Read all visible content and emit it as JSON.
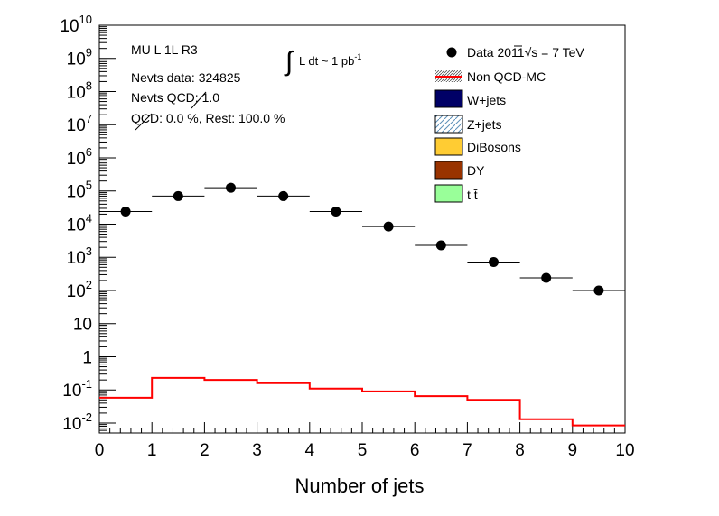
{
  "chart_data": {
    "type": "scatter",
    "xlabel": "Number of jets",
    "ylabel": "",
    "xlim": [
      0,
      10
    ],
    "ylim_log10": [
      -2.3,
      10
    ],
    "log_y": true,
    "x_ticks": [
      "0",
      "1",
      "2",
      "3",
      "4",
      "5",
      "6",
      "7",
      "8",
      "9",
      "10"
    ],
    "y_ticks": [
      {
        "v": 10,
        "base": "10",
        "exp": "10"
      },
      {
        "v": 9,
        "base": "10",
        "exp": "9"
      },
      {
        "v": 8,
        "base": "10",
        "exp": "8"
      },
      {
        "v": 7,
        "base": "10",
        "exp": "7"
      },
      {
        "v": 6,
        "base": "10",
        "exp": "6"
      },
      {
        "v": 5,
        "base": "10",
        "exp": "5"
      },
      {
        "v": 4,
        "base": "10",
        "exp": "4"
      },
      {
        "v": 3,
        "base": "10",
        "exp": "3"
      },
      {
        "v": 2,
        "base": "10",
        "exp": "2"
      },
      {
        "v": 1,
        "base": "10",
        "exp": ""
      },
      {
        "v": 0,
        "base": "1",
        "exp": ""
      },
      {
        "v": -1,
        "base": "10",
        "exp": "-1"
      },
      {
        "v": -2,
        "base": "10",
        "exp": "-2"
      }
    ],
    "series": [
      {
        "name": "Data 2011",
        "kind": "points",
        "color": "#000000",
        "x": [
          0.5,
          1.5,
          2.5,
          3.5,
          4.5,
          5.5,
          6.5,
          7.5,
          8.5,
          9.5
        ],
        "y": [
          24000,
          70000,
          125000,
          70000,
          24000,
          8500,
          2300,
          720,
          240,
          100
        ]
      },
      {
        "name": "Non QCD-MC",
        "kind": "step",
        "color": "#ff0000",
        "edges": [
          0,
          1,
          2,
          3,
          4,
          5,
          6,
          7,
          8,
          9,
          10
        ],
        "y": [
          0.058,
          0.23,
          0.2,
          0.16,
          0.11,
          0.09,
          0.065,
          0.05,
          0.013,
          0.0085
        ]
      }
    ],
    "annotations": {
      "line1": "MU L  1L R3",
      "line2": "Nevts data: 324825",
      "line3": "Nevts QCD:  1.0",
      "line4": "QCD:  0.0 %,  Rest: 100.0 %",
      "lumi_int": "∫",
      "lumi_text": "L dt ~ 1 pb",
      "lumi_exp": "-1"
    },
    "legend": {
      "placement": "top-right",
      "data_label": "Data 2011",
      "data_sqrt": "√s",
      "data_energy": " = 7 TeV",
      "entries": [
        {
          "label": "Non QCD-MC",
          "style": "hatch-line",
          "color": "#ff0000"
        },
        {
          "label": "W+jets",
          "style": "fill",
          "color": "#000066"
        },
        {
          "label": "Z+jets",
          "style": "hatch",
          "color": "#5b8fb8"
        },
        {
          "label": "DiBosons",
          "style": "fill",
          "color": "#ffcc33"
        },
        {
          "label": "DY",
          "style": "fill",
          "color": "#993300"
        },
        {
          "label": "t t̄",
          "style": "fill",
          "color": "#99ff99"
        }
      ]
    }
  }
}
